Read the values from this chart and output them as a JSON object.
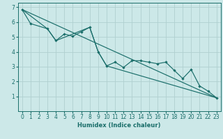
{
  "xlabel": "Humidex (Indice chaleur)",
  "bg_color": "#cce8e8",
  "line_color": "#1a6e6a",
  "grid_color_v": "#b0d0d0",
  "grid_color_h": "#b0d0d0",
  "xlim": [
    -0.5,
    23.5
  ],
  "ylim": [
    0,
    7.3
  ],
  "xticks": [
    0,
    1,
    2,
    3,
    4,
    5,
    6,
    7,
    8,
    9,
    10,
    11,
    12,
    13,
    14,
    15,
    16,
    17,
    18,
    19,
    20,
    21,
    22,
    23
  ],
  "yticks": [
    1,
    2,
    3,
    4,
    5,
    6,
    7
  ],
  "line1_x": [
    0,
    1,
    3,
    4,
    5,
    6,
    7,
    8,
    9,
    10,
    11,
    12,
    13,
    14,
    15,
    16,
    17,
    18,
    19,
    20,
    21,
    22,
    23
  ],
  "line1_y": [
    6.85,
    5.9,
    5.55,
    4.75,
    5.2,
    5.05,
    5.35,
    5.65,
    4.0,
    3.05,
    3.3,
    2.95,
    3.4,
    3.4,
    3.3,
    3.2,
    3.3,
    2.75,
    2.2,
    2.8,
    1.7,
    1.35,
    0.9
  ],
  "line2_x": [
    0,
    3,
    4,
    8,
    9,
    10,
    23
  ],
  "line2_y": [
    6.85,
    5.55,
    4.75,
    5.65,
    4.0,
    3.05,
    0.9
  ],
  "line3_x": [
    0,
    23
  ],
  "line3_y": [
    6.85,
    0.9
  ]
}
